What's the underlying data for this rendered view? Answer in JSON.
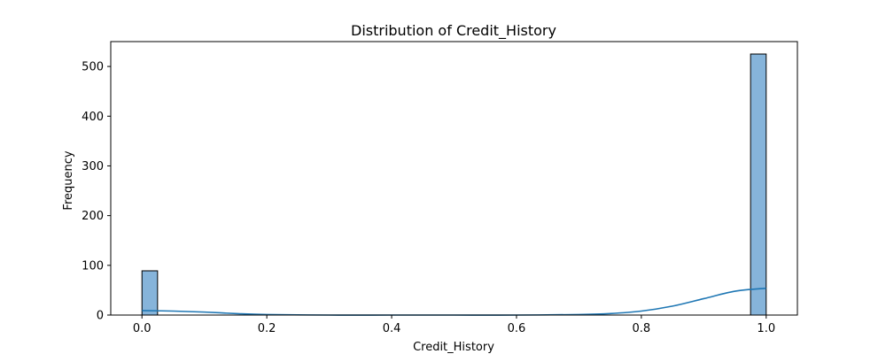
{
  "chart_data": {
    "type": "bar",
    "subtype": "histogram_with_kde",
    "title": "Distribution of Credit_History",
    "xlabel": "Credit_History",
    "ylabel": "Frequency",
    "xlim": [
      -0.05,
      1.05
    ],
    "ylim": [
      0,
      550
    ],
    "xticks": [
      0.0,
      0.2,
      0.4,
      0.6,
      0.8,
      1.0
    ],
    "xtick_labels": [
      "0.0",
      "0.2",
      "0.4",
      "0.6",
      "0.8",
      "1.0"
    ],
    "yticks": [
      0,
      100,
      200,
      300,
      400,
      500
    ],
    "ytick_labels": [
      "0",
      "100",
      "200",
      "300",
      "400",
      "500"
    ],
    "grid": false,
    "bins": [
      {
        "x0": 0.0,
        "x1": 0.025,
        "count": 89
      },
      {
        "x0": 0.975,
        "x1": 1.0,
        "count": 525
      }
    ],
    "kde": {
      "x": [
        0.0,
        0.05,
        0.1,
        0.15,
        0.2,
        0.3,
        0.4,
        0.5,
        0.6,
        0.7,
        0.75,
        0.8,
        0.85,
        0.9,
        0.95,
        1.0
      ],
      "y": [
        9,
        8,
        6,
        3,
        1,
        0,
        0,
        0,
        0,
        1,
        3,
        8,
        18,
        33,
        48,
        54
      ]
    },
    "colors": {
      "bar_fill": "#86b4da",
      "bar_edge": "#000000",
      "kde_line": "#1f77b4"
    }
  }
}
